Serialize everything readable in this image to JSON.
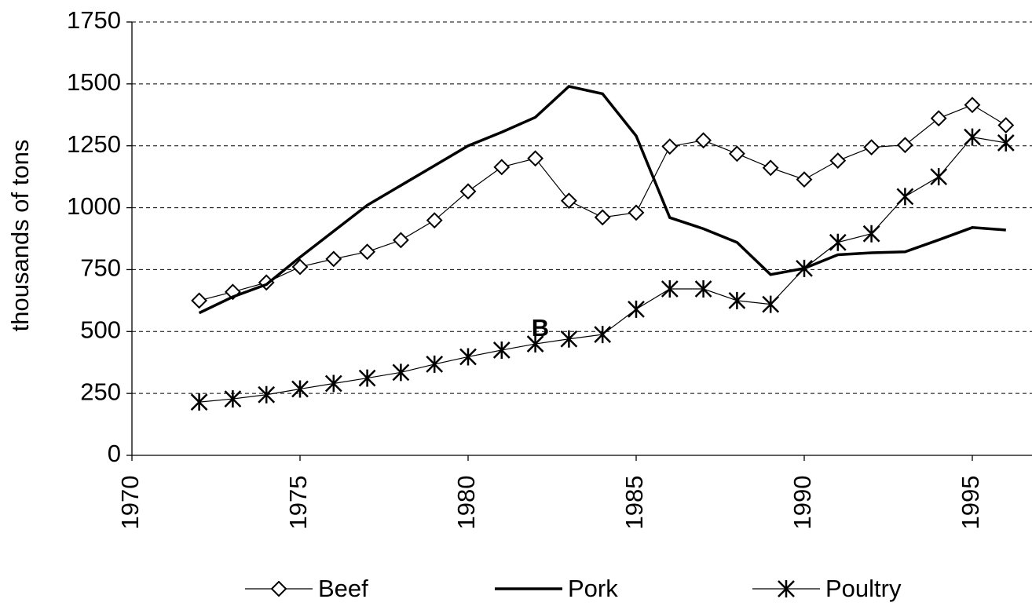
{
  "chart_data": {
    "type": "line",
    "y_label": "thousands of tons",
    "annotation": "B",
    "x": [
      1972,
      1973,
      1974,
      1975,
      1976,
      1977,
      1978,
      1979,
      1980,
      1981,
      1982,
      1983,
      1984,
      1985,
      1986,
      1987,
      1988,
      1989,
      1990,
      1991,
      1992,
      1993,
      1994,
      1995,
      1996
    ],
    "series": [
      {
        "name": "Beef",
        "color": "#000000",
        "marker": "diamond",
        "values": [
          625,
          660,
          698,
          761,
          793,
          822,
          869,
          949,
          1066,
          1164,
          1199,
          1028,
          961,
          980,
          1247,
          1272,
          1218,
          1161,
          1114,
          1190,
          1244,
          1253,
          1361,
          1415,
          1333
        ]
      },
      {
        "name": "Pork",
        "color": "#000000",
        "marker": "none",
        "values": [
          575,
          640,
          690,
          800,
          905,
          1010,
          1090,
          1170,
          1250,
          1305,
          1365,
          1490,
          1460,
          1290,
          960,
          915,
          860,
          730,
          755,
          810,
          818,
          822,
          870,
          920,
          910
        ]
      },
      {
        "name": "Poultry",
        "color": "#000000",
        "marker": "asterisk",
        "values": [
          215,
          228,
          245,
          268,
          290,
          312,
          335,
          368,
          398,
          425,
          450,
          470,
          488,
          590,
          672,
          672,
          625,
          610,
          755,
          860,
          895,
          1045,
          1125,
          1285,
          1262
        ]
      }
    ],
    "xlim": [
      1970,
      2000
    ],
    "xticks": [
      1970,
      1975,
      1980,
      1985,
      1990,
      1995
    ],
    "ylim": [
      0,
      1750
    ],
    "yticks": [
      0,
      250,
      500,
      750,
      1000,
      1250,
      1500,
      1750
    ],
    "grid": true,
    "legend": "bottom"
  }
}
